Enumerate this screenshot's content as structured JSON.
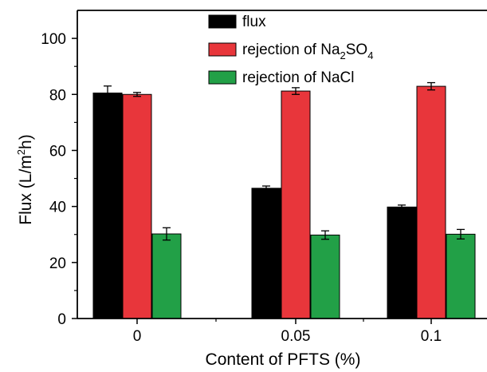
{
  "chart_data": {
    "type": "bar",
    "categories": [
      "0",
      "0.05",
      "0.1"
    ],
    "series": [
      {
        "name": "flux",
        "color": "#000000",
        "values": [
          80.5,
          46.5,
          39.8
        ],
        "errors": [
          2.5,
          0.8,
          0.7
        ]
      },
      {
        "name": "rejection of Na2SO4",
        "name_parts": [
          {
            "t": "rejection of Na",
            "sub": false
          },
          {
            "t": "2",
            "sub": true
          },
          {
            "t": "SO",
            "sub": false
          },
          {
            "t": "4",
            "sub": true
          }
        ],
        "color": "#e8363b",
        "values": [
          80.0,
          81.2,
          82.9
        ],
        "errors": [
          0.7,
          1.2,
          1.3
        ]
      },
      {
        "name": "rejection of NaCl",
        "color": "#22a047",
        "values": [
          30.2,
          29.8,
          30.1
        ],
        "errors": [
          2.2,
          1.5,
          1.7
        ]
      }
    ],
    "xlabel": "Content of PFTS (%)",
    "ylabel_parts": [
      {
        "t": "Flux (L/m",
        "sup": false
      },
      {
        "t": "2",
        "sup": true
      },
      {
        "t": "h)",
        "sup": false
      }
    ],
    "ylabel": "Flux (L/m2h)",
    "ylim": [
      0,
      110
    ],
    "yticks": [
      0,
      20,
      40,
      60,
      80,
      100
    ],
    "ytick_labels": [
      "0",
      "20",
      "40",
      "60",
      "80",
      "100"
    ],
    "legend_position": "top-right",
    "grid": false
  }
}
